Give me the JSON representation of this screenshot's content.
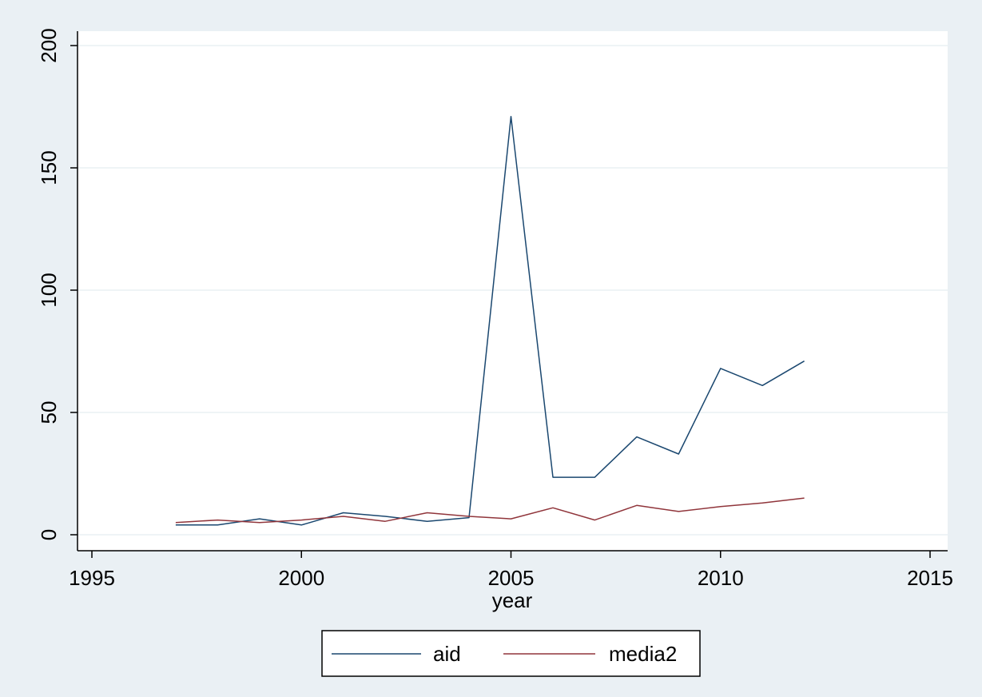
{
  "chart_data": {
    "type": "line",
    "title": "",
    "xlabel": "year",
    "ylabel": "",
    "xlim": [
      1995,
      2015
    ],
    "ylim": [
      0,
      200
    ],
    "x_ticks": [
      1995,
      2000,
      2005,
      2010,
      2015
    ],
    "y_ticks": [
      0,
      50,
      100,
      150,
      200
    ],
    "grid": true,
    "legend_position": "bottom",
    "x": [
      1997,
      1998,
      1999,
      2000,
      2001,
      2002,
      2003,
      2004,
      2005,
      2006,
      2007,
      2008,
      2009,
      2010,
      2011,
      2012
    ],
    "series": [
      {
        "name": "aid",
        "color": "#1a476f",
        "values": [
          4,
          4,
          6.5,
          4,
          9,
          7.5,
          5.5,
          7,
          171,
          23.5,
          23.5,
          40,
          33,
          68,
          61,
          71
        ]
      },
      {
        "name": "media2",
        "color": "#90353b",
        "values": [
          5,
          6,
          5,
          6,
          7.5,
          5.5,
          9,
          7.5,
          6.5,
          11,
          6,
          12,
          9.5,
          11.5,
          13,
          15
        ]
      }
    ]
  },
  "colors": {
    "background": "#eaf0f4",
    "plot_background": "#ffffff",
    "grid": "#eaf0f4"
  }
}
